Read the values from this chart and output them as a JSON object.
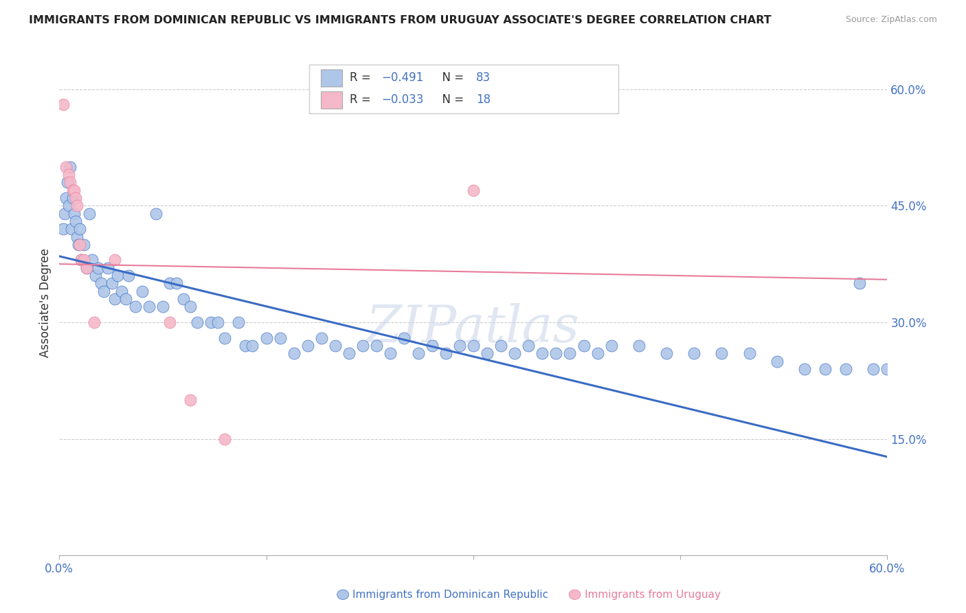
{
  "title": "IMMIGRANTS FROM DOMINICAN REPUBLIC VS IMMIGRANTS FROM URUGUAY ASSOCIATE'S DEGREE CORRELATION CHART",
  "source": "Source: ZipAtlas.com",
  "ylabel": "Associate's Degree",
  "right_yticks": [
    "60.0%",
    "45.0%",
    "30.0%",
    "15.0%"
  ],
  "right_ytick_vals": [
    0.6,
    0.45,
    0.3,
    0.15
  ],
  "xmin": 0.0,
  "xmax": 0.6,
  "ymin": 0.0,
  "ymax": 0.65,
  "blue_color": "#aec6e8",
  "pink_color": "#f4b8c8",
  "blue_line_color": "#3a6bc4",
  "pink_line_color": "#e87b9b",
  "watermark": "ZIPatlas",
  "blue_scatter_x": [
    0.003,
    0.004,
    0.005,
    0.006,
    0.007,
    0.008,
    0.009,
    0.01,
    0.011,
    0.012,
    0.013,
    0.014,
    0.015,
    0.016,
    0.018,
    0.02,
    0.022,
    0.024,
    0.026,
    0.028,
    0.03,
    0.032,
    0.035,
    0.038,
    0.04,
    0.042,
    0.045,
    0.048,
    0.05,
    0.055,
    0.06,
    0.065,
    0.07,
    0.075,
    0.08,
    0.085,
    0.09,
    0.095,
    0.1,
    0.11,
    0.115,
    0.12,
    0.13,
    0.135,
    0.14,
    0.15,
    0.16,
    0.17,
    0.18,
    0.19,
    0.2,
    0.21,
    0.22,
    0.23,
    0.24,
    0.25,
    0.26,
    0.27,
    0.28,
    0.29,
    0.3,
    0.31,
    0.32,
    0.33,
    0.34,
    0.35,
    0.36,
    0.37,
    0.38,
    0.39,
    0.4,
    0.42,
    0.44,
    0.46,
    0.48,
    0.5,
    0.52,
    0.54,
    0.555,
    0.57,
    0.58,
    0.59,
    0.6
  ],
  "blue_scatter_y": [
    0.42,
    0.44,
    0.46,
    0.48,
    0.45,
    0.5,
    0.42,
    0.46,
    0.44,
    0.43,
    0.41,
    0.4,
    0.42,
    0.38,
    0.4,
    0.37,
    0.44,
    0.38,
    0.36,
    0.37,
    0.35,
    0.34,
    0.37,
    0.35,
    0.33,
    0.36,
    0.34,
    0.33,
    0.36,
    0.32,
    0.34,
    0.32,
    0.44,
    0.32,
    0.35,
    0.35,
    0.33,
    0.32,
    0.3,
    0.3,
    0.3,
    0.28,
    0.3,
    0.27,
    0.27,
    0.28,
    0.28,
    0.26,
    0.27,
    0.28,
    0.27,
    0.26,
    0.27,
    0.27,
    0.26,
    0.28,
    0.26,
    0.27,
    0.26,
    0.27,
    0.27,
    0.26,
    0.27,
    0.26,
    0.27,
    0.26,
    0.26,
    0.26,
    0.27,
    0.26,
    0.27,
    0.27,
    0.26,
    0.26,
    0.26,
    0.26,
    0.25,
    0.24,
    0.24,
    0.24,
    0.35,
    0.24,
    0.24
  ],
  "pink_scatter_x": [
    0.003,
    0.005,
    0.007,
    0.008,
    0.01,
    0.011,
    0.012,
    0.013,
    0.015,
    0.016,
    0.018,
    0.02,
    0.025,
    0.04,
    0.08,
    0.095,
    0.12,
    0.3
  ],
  "pink_scatter_y": [
    0.58,
    0.5,
    0.49,
    0.48,
    0.47,
    0.47,
    0.46,
    0.45,
    0.4,
    0.38,
    0.38,
    0.37,
    0.3,
    0.38,
    0.3,
    0.2,
    0.15,
    0.47
  ],
  "blue_trend_x0": 0.0,
  "blue_trend_x1": 0.6,
  "blue_trend_y0": 0.385,
  "blue_trend_y1": 0.127,
  "pink_trend_x0": 0.0,
  "pink_trend_x1": 0.6,
  "pink_trend_y0": 0.375,
  "pink_trend_y1": 0.355
}
